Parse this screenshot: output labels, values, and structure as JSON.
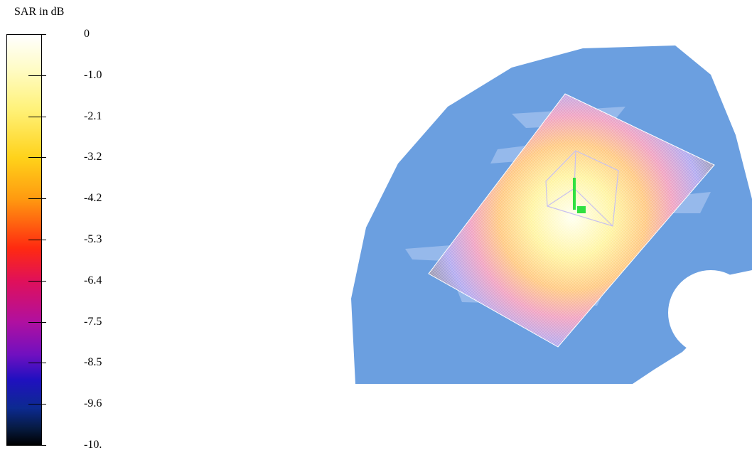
{
  "colorbar": {
    "title": "SAR in dB",
    "labels": [
      "0",
      "-1.0",
      "-2.1",
      "-3.2",
      "-4.2",
      "-5.3",
      "-6.4",
      "-7.5",
      "-8.5",
      "-9.6",
      "-10."
    ]
  }
}
